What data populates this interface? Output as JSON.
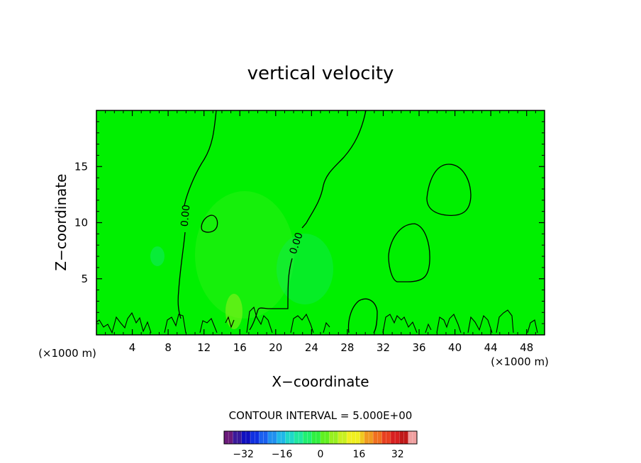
{
  "chart_data": {
    "type": "contour",
    "title": "vertical velocity",
    "xlabel": "X−coordinate",
    "ylabel": "Z−coordinate",
    "x_unit_left": "(×1000 m)",
    "x_unit_right": "(×1000 m)",
    "xlim": [
      0,
      50
    ],
    "ylim": [
      0,
      20
    ],
    "x_ticks": [
      4,
      8,
      12,
      16,
      20,
      24,
      28,
      32,
      36,
      40,
      44,
      48
    ],
    "y_ticks": [
      5,
      10,
      15
    ],
    "background_field": "near zero (green)",
    "contour_labels": [
      {
        "text": "0.00",
        "x": 10,
        "z": 10.5
      },
      {
        "text": "0.00",
        "x": 22.5,
        "z": 8.3
      }
    ],
    "contour_interval_text": "CONTOUR INTERVAL = 5.000E+00",
    "colorbar": {
      "range": [
        -40,
        40
      ],
      "ticks": [
        "−32",
        "−16",
        "0",
        "16",
        "32"
      ],
      "tick_values": [
        -32,
        -16,
        0,
        16,
        32
      ],
      "colors": [
        "#6a1a7a",
        "#3a1a9a",
        "#1010c0",
        "#1030e0",
        "#1a60f0",
        "#2090f0",
        "#20b8e8",
        "#20d8c8",
        "#20e8a0",
        "#20f070",
        "#30f040",
        "#60f020",
        "#98f020",
        "#c8f020",
        "#f0f020",
        "#f0c820",
        "#f09a20",
        "#f07020",
        "#e84020",
        "#d82020",
        "#c01818",
        "#f0a0a0"
      ]
    },
    "field_color": "#00f000"
  }
}
